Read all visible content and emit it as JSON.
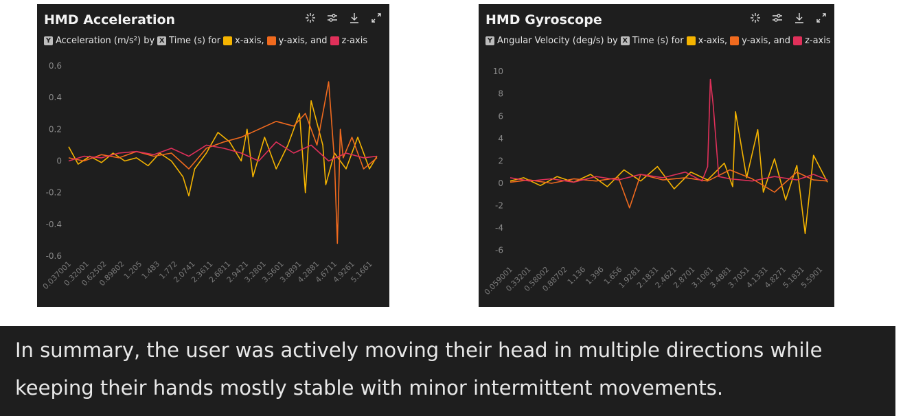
{
  "panels": [
    {
      "title": "HMD Acceleration",
      "legend": {
        "y_tag": "Y",
        "y_text": "Acceleration (m/s²) by",
        "x_tag": "X",
        "x_text": "Time (s) for",
        "s1": "x-axis,",
        "s2": "y-axis, and",
        "s3": "z-axis"
      },
      "icons": [
        "select-icon",
        "adjust-icon",
        "download-icon",
        "expand-icon"
      ]
    },
    {
      "title": "HMD Gyroscope",
      "legend": {
        "y_tag": "Y",
        "y_text": "Angular Velocity (deg/s) by",
        "x_tag": "X",
        "x_text": "Time (s) for",
        "s1": "x-axis,",
        "s2": "y-axis, and",
        "s3": "z-axis"
      },
      "icons": [
        "select-icon",
        "adjust-icon",
        "download-icon",
        "expand-icon"
      ]
    }
  ],
  "chart_data": [
    {
      "type": "line",
      "title": "HMD Acceleration",
      "ylabel": "Acceleration (m/s²)",
      "xlabel": "Time (s)",
      "ylim": [
        -0.6,
        0.6
      ],
      "y_ticks": [
        "0.6",
        "0.4",
        "0.2",
        "0",
        "-0.2",
        "-0.4",
        "-0.6"
      ],
      "y_tick_values": [
        0.6,
        0.4,
        0.2,
        0,
        -0.2,
        -0.4,
        -0.6
      ],
      "x_ticks": [
        "0.037001",
        "0.32001",
        "0.62502",
        "0.89802",
        "1.205",
        "1.483",
        "1.772",
        "2.0741",
        "2.3611",
        "2.6811",
        "2.9421",
        "3.2801",
        "3.5601",
        "3.8891",
        "4.2881",
        "4.6711",
        "4.9261",
        "5.1661"
      ],
      "xlim": [
        0.037,
        5.33
      ],
      "series": [
        {
          "name": "x-axis",
          "color": "#f5b400",
          "x": [
            0.037,
            0.2,
            0.4,
            0.6,
            0.8,
            1.0,
            1.2,
            1.4,
            1.6,
            1.8,
            2.0,
            2.1,
            2.2,
            2.4,
            2.6,
            2.8,
            3.0,
            3.1,
            3.2,
            3.4,
            3.6,
            3.8,
            4.0,
            4.1,
            4.2,
            4.4,
            4.45,
            4.6,
            4.8,
            5.0,
            5.2,
            5.33
          ],
          "y": [
            0.09,
            -0.02,
            0.03,
            -0.01,
            0.05,
            0.0,
            0.02,
            -0.03,
            0.05,
            0.0,
            -0.1,
            -0.22,
            -0.05,
            0.05,
            0.18,
            0.12,
            0.0,
            0.2,
            -0.1,
            0.15,
            -0.05,
            0.1,
            0.3,
            -0.2,
            0.38,
            0.1,
            -0.15,
            0.05,
            -0.05,
            0.15,
            -0.05,
            0.03
          ]
        },
        {
          "name": "y-axis",
          "color": "#f06a1e",
          "x": [
            0.037,
            0.3,
            0.6,
            0.9,
            1.2,
            1.5,
            1.8,
            2.1,
            2.4,
            2.7,
            3.0,
            3.3,
            3.6,
            3.9,
            4.1,
            4.3,
            4.5,
            4.6,
            4.65,
            4.7,
            4.75,
            4.9,
            5.1,
            5.33
          ],
          "y": [
            0.02,
            0.0,
            0.04,
            0.02,
            0.06,
            0.03,
            0.05,
            -0.05,
            0.08,
            0.12,
            0.15,
            0.2,
            0.25,
            0.22,
            0.3,
            0.1,
            0.5,
            0.0,
            -0.52,
            0.2,
            0.02,
            0.15,
            -0.05,
            0.02
          ]
        },
        {
          "name": "z-axis",
          "color": "#e0305a",
          "x": [
            0.037,
            0.3,
            0.6,
            0.9,
            1.2,
            1.5,
            1.8,
            2.1,
            2.4,
            2.7,
            3.0,
            3.3,
            3.6,
            3.9,
            4.2,
            4.5,
            4.8,
            5.1,
            5.33
          ],
          "y": [
            0.0,
            0.03,
            0.02,
            0.05,
            0.06,
            0.04,
            0.08,
            0.03,
            0.1,
            0.08,
            0.05,
            0.0,
            0.12,
            0.05,
            0.1,
            0.0,
            0.05,
            0.02,
            0.03
          ]
        }
      ]
    },
    {
      "type": "line",
      "title": "HMD Gyroscope",
      "ylabel": "Angular Velocity (deg/s)",
      "xlabel": "Time (s)",
      "ylim": [
        -7,
        10.5
      ],
      "y_ticks": [
        "10",
        "8",
        "6",
        "4",
        "2",
        "0",
        "-2",
        "-4",
        "-6"
      ],
      "y_tick_values": [
        10,
        8,
        6,
        4,
        2,
        0,
        -2,
        -4,
        -6
      ],
      "x_ticks": [
        "0.059001",
        "0.33201",
        "0.58002",
        "0.88702",
        "1.136",
        "1.396",
        "1.656",
        "1.9281",
        "2.1831",
        "2.4621",
        "2.8701",
        "3.1081",
        "3.4881",
        "3.7051",
        "4.1331",
        "4.8271",
        "5.1831",
        "5.5901"
      ],
      "xlim": [
        0.059,
        5.75
      ],
      "series": [
        {
          "name": "x-axis",
          "color": "#f5b400",
          "x": [
            0.059,
            0.3,
            0.6,
            0.9,
            1.2,
            1.5,
            1.8,
            2.1,
            2.4,
            2.7,
            3.0,
            3.3,
            3.6,
            3.9,
            4.05,
            4.1,
            4.3,
            4.5,
            4.6,
            4.8,
            5.0,
            5.2,
            5.35,
            5.5,
            5.75
          ],
          "y": [
            0.2,
            0.5,
            -0.2,
            0.6,
            0.1,
            0.8,
            -0.3,
            1.2,
            0.2,
            1.5,
            -0.5,
            1.0,
            0.3,
            1.8,
            -0.3,
            6.4,
            0.5,
            4.8,
            -0.8,
            2.2,
            -1.5,
            1.6,
            -4.5,
            2.5,
            0.1
          ]
        },
        {
          "name": "y-axis",
          "color": "#f06a1e",
          "x": [
            0.059,
            0.4,
            0.8,
            1.2,
            1.6,
            2.0,
            2.2,
            2.4,
            2.8,
            3.2,
            3.6,
            4.0,
            4.4,
            4.8,
            5.2,
            5.5,
            5.75
          ],
          "y": [
            0.1,
            0.3,
            0.0,
            0.4,
            0.2,
            0.5,
            -2.2,
            0.8,
            0.3,
            0.5,
            0.2,
            1.2,
            0.4,
            -0.8,
            1.0,
            0.3,
            0.2
          ]
        },
        {
          "name": "z-axis",
          "color": "#e0305a",
          "x": [
            0.059,
            0.4,
            0.8,
            1.2,
            1.6,
            2.0,
            2.4,
            2.8,
            3.2,
            3.5,
            3.6,
            3.65,
            3.7,
            3.8,
            4.0,
            4.4,
            4.8,
            5.2,
            5.5,
            5.75
          ],
          "y": [
            0.5,
            0.2,
            0.4,
            0.1,
            0.6,
            0.3,
            0.8,
            0.5,
            1.0,
            0.2,
            1.5,
            9.3,
            7.0,
            0.6,
            0.4,
            0.2,
            0.6,
            0.3,
            0.8,
            0.3
          ]
        }
      ]
    }
  ],
  "summary": {
    "line1": "In summary, the user was actively moving their head in multiple directions while",
    "line2": "keeping their hands mostly stable with minor intermittent movements."
  }
}
